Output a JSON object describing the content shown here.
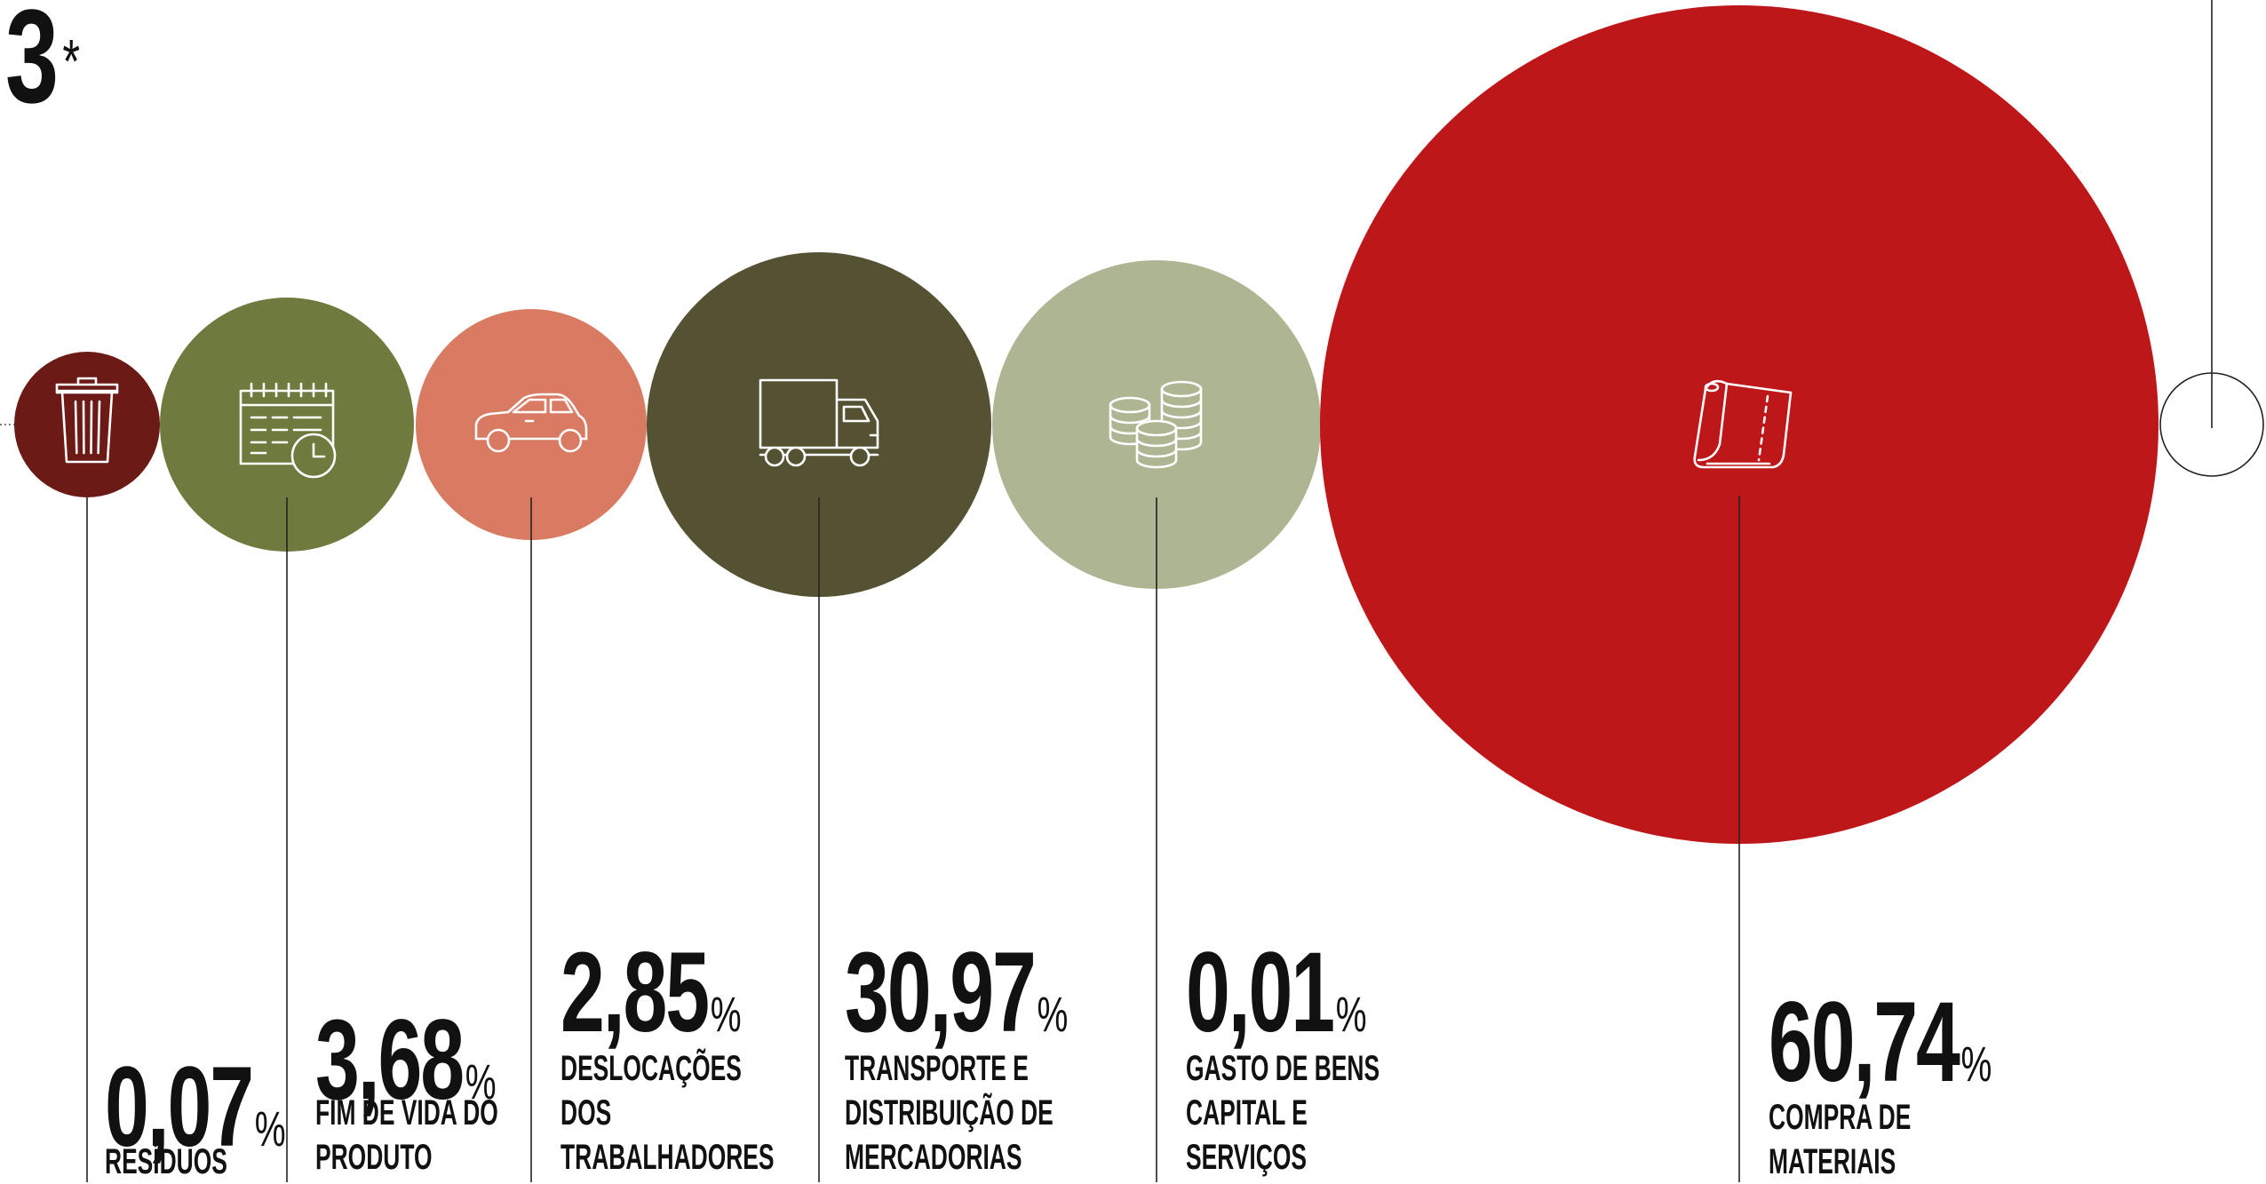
{
  "page": {
    "scope_number": "3",
    "scope_mark": "*"
  },
  "chart_data": {
    "type": "bubble",
    "title": "",
    "categories": [
      "RESÍDUOS",
      "FIM DE VIDA DO PRODUTO",
      "DESLOCAÇÕES DOS TRABALHADORES",
      "TRANSPORTE E DISTRIBUIÇÃO DE MERCADORIAS",
      "GASTO DE BENS CAPITAL E SERVIÇOS",
      "COMPRA DE MATERIAIS"
    ],
    "series": [
      {
        "values": [
          0.07,
          3.68,
          2.85,
          30.97,
          0.01,
          60.74
        ],
        "labels": [
          "0,07",
          "3,68",
          "2,85",
          "30,97",
          "0,01",
          "60,74"
        ],
        "unit": "%"
      }
    ],
    "items": [
      {
        "key": "residuos",
        "value_label": "0,07",
        "unit": "%",
        "label_lines": [
          "RESÍDUOS"
        ],
        "color": "#6b1a16",
        "icon": "trash-bin-icon"
      },
      {
        "key": "fim-de-vida",
        "value_label": "3,68",
        "unit": "%",
        "label_lines": [
          "FIM DE VIDA DO",
          "PRODUTO"
        ],
        "color": "#6e7a3e",
        "icon": "calendar-clock-icon"
      },
      {
        "key": "deslocacoes",
        "value_label": "2,85",
        "unit": "%",
        "label_lines": [
          "DESLOCAÇÕES",
          "DOS",
          "TRABALHADORES"
        ],
        "color": "#d97a62",
        "icon": "car-icon"
      },
      {
        "key": "transporte",
        "value_label": "30,97",
        "unit": "%",
        "label_lines": [
          "TRANSPORTE E",
          "DISTRIBUIÇÃO DE",
          "MERCADORIAS"
        ],
        "color": "#545232",
        "icon": "truck-icon"
      },
      {
        "key": "gasto-bens",
        "value_label": "0,01",
        "unit": "%",
        "label_lines": [
          "GASTO DE BENS",
          "CAPITAL E",
          "SERVIÇOS"
        ],
        "color": "#aeb592",
        "icon": "coins-icon"
      },
      {
        "key": "compra-materiais",
        "value_label": "60,74",
        "unit": "%",
        "label_lines": [
          "COMPRA DE",
          "MATERIAIS"
        ],
        "color": "#bd1719",
        "icon": "fabric-roll-icon"
      }
    ]
  }
}
